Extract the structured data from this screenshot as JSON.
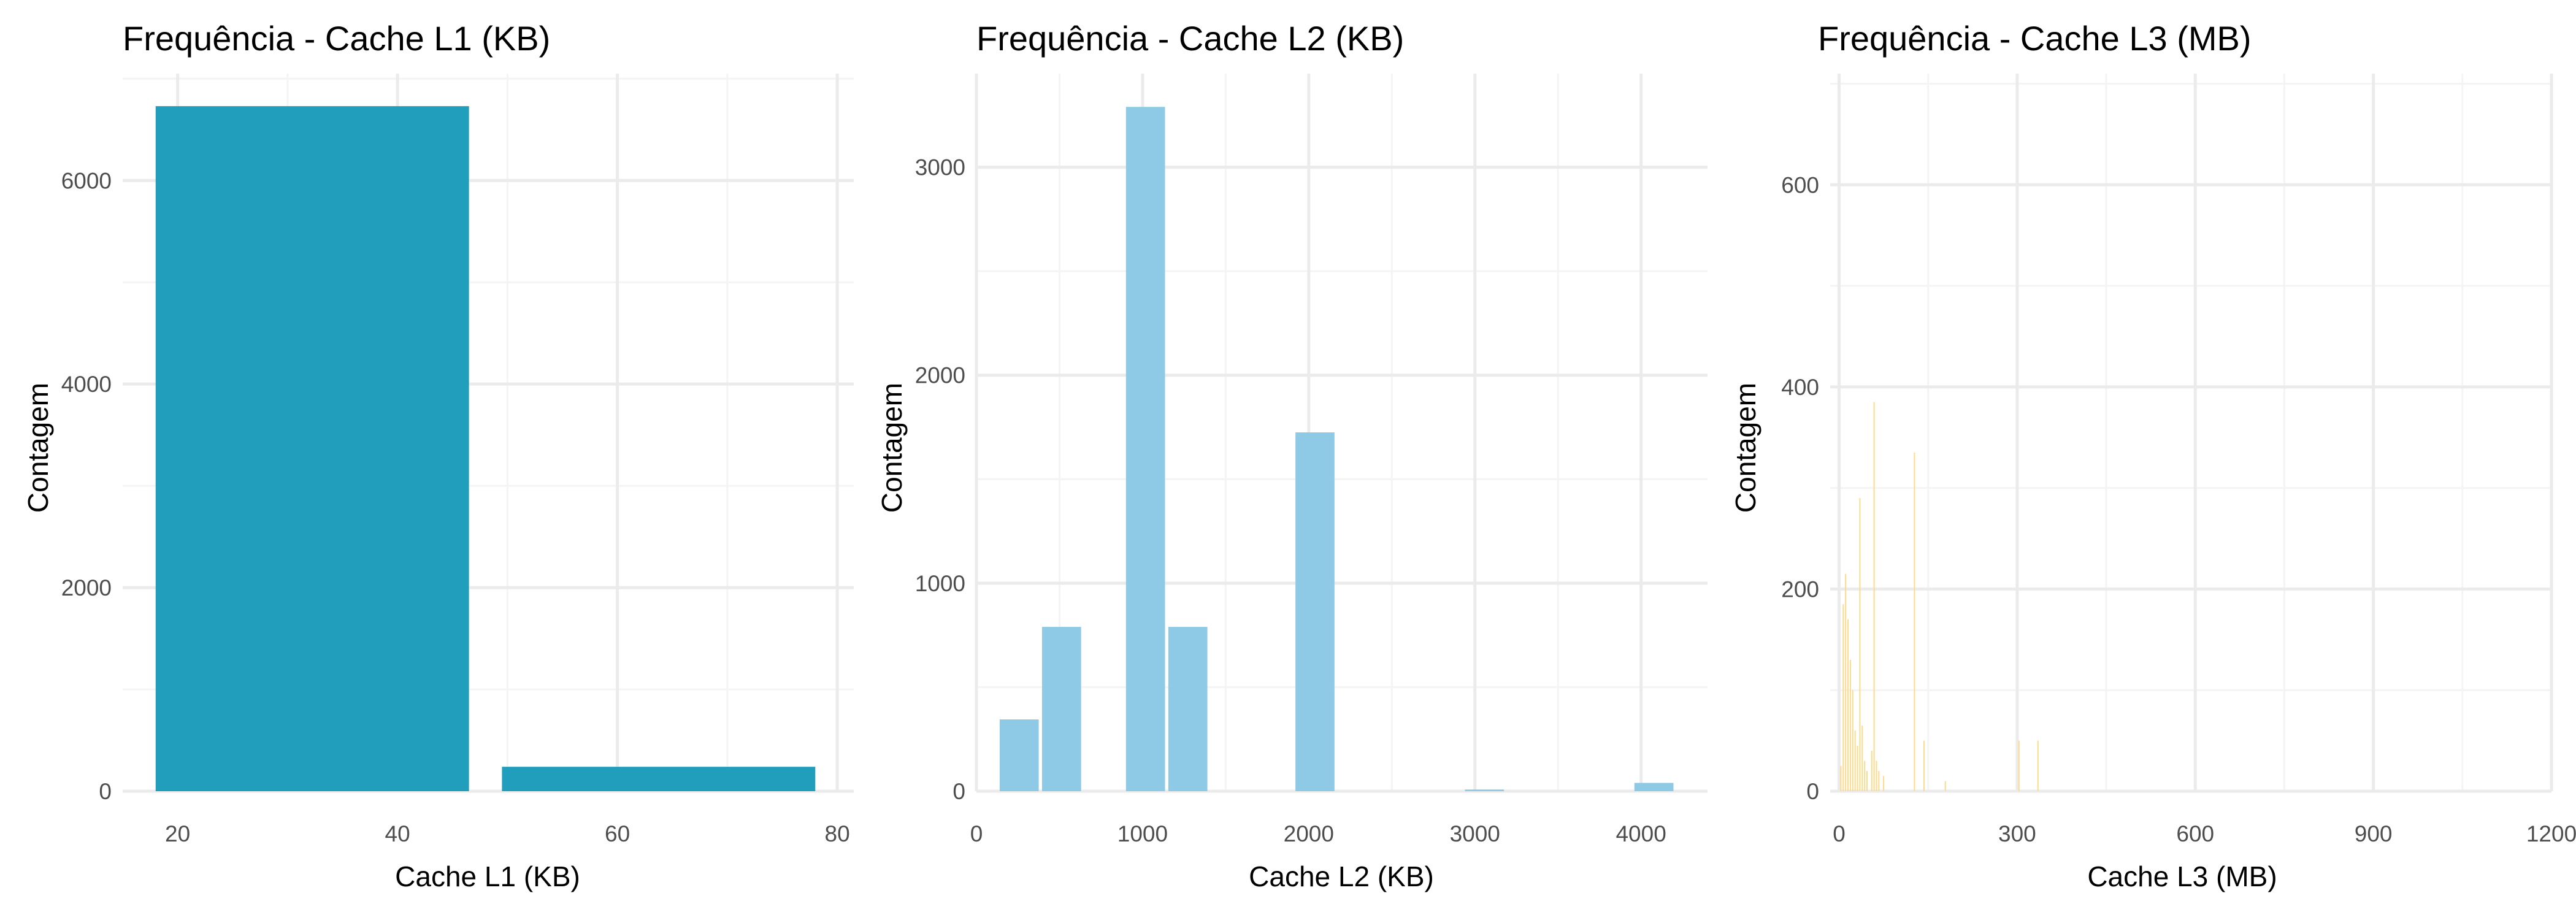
{
  "chart_data": [
    {
      "type": "bar",
      "title": "Frequência - Cache L1 (KB)",
      "xlabel": "Cache L1 (KB)",
      "ylabel": "Contagem",
      "xlim": [
        15,
        81.5
      ],
      "ylim": [
        0,
        7050
      ],
      "x_ticks": [
        20,
        40,
        60,
        80
      ],
      "y_ticks": [
        0,
        2000,
        4000,
        6000
      ],
      "x_tick_labels": [
        "20",
        "40",
        "60",
        "80"
      ],
      "y_tick_labels": [
        "0",
        "2000",
        "4000",
        "6000"
      ],
      "bar_color": "#219ebc",
      "bars": [
        {
          "start": 18,
          "end": 46.5,
          "value": 6730
        },
        {
          "start": 49.5,
          "end": 78,
          "value": 240
        }
      ],
      "grid": true,
      "legend": "none"
    },
    {
      "type": "bar",
      "title": "Frequência - Cache L2 (KB)",
      "xlabel": "Cache L2 (KB)",
      "ylabel": "Contagem",
      "xlim": [
        0,
        4400
      ],
      "ylim": [
        0,
        3450
      ],
      "x_ticks": [
        0,
        1000,
        2000,
        3000,
        4000
      ],
      "y_ticks": [
        0,
        1000,
        2000,
        3000
      ],
      "x_tick_labels": [
        "0",
        "1000",
        "2000",
        "3000",
        "4000"
      ],
      "y_tick_labels": [
        "0",
        "1000",
        "2000",
        "3000"
      ],
      "bar_color": "#8ecae6",
      "bars": [
        {
          "start": 140,
          "end": 375,
          "value": 345
        },
        {
          "start": 395,
          "end": 630,
          "value": 790
        },
        {
          "start": 900,
          "end": 1135,
          "value": 3290
        },
        {
          "start": 1155,
          "end": 1390,
          "value": 790
        },
        {
          "start": 1920,
          "end": 2155,
          "value": 1725
        },
        {
          "start": 2940,
          "end": 3175,
          "value": 8
        },
        {
          "start": 3960,
          "end": 4195,
          "value": 40
        }
      ],
      "grid": true,
      "legend": "none"
    },
    {
      "type": "bar",
      "title": "Frequência - Cache L3 (MB)",
      "xlabel": "Cache L3 (MB)",
      "ylabel": "Contagem",
      "xlim": [
        -15,
        1200
      ],
      "ylim": [
        0,
        710
      ],
      "x_ticks": [
        0,
        300,
        600,
        900,
        1200
      ],
      "y_ticks": [
        0,
        200,
        400,
        600
      ],
      "x_tick_labels": [
        "0",
        "300",
        "600",
        "900",
        "1200"
      ],
      "y_tick_labels": [
        "0",
        "200",
        "400",
        "600"
      ],
      "bar_color": "#ffd98a",
      "bars": [
        {
          "start": 2,
          "end": 4,
          "value": 25
        },
        {
          "start": 6,
          "end": 8,
          "value": 185
        },
        {
          "start": 10,
          "end": 12,
          "value": 215
        },
        {
          "start": 14,
          "end": 16,
          "value": 170
        },
        {
          "start": 18,
          "end": 20,
          "value": 130
        },
        {
          "start": 22,
          "end": 24,
          "value": 100
        },
        {
          "start": 26,
          "end": 28,
          "value": 60
        },
        {
          "start": 30,
          "end": 32,
          "value": 45
        },
        {
          "start": 34,
          "end": 36,
          "value": 290
        },
        {
          "start": 38,
          "end": 40,
          "value": 65
        },
        {
          "start": 42,
          "end": 44,
          "value": 30
        },
        {
          "start": 46,
          "end": 48,
          "value": 20
        },
        {
          "start": 54,
          "end": 56,
          "value": 40
        },
        {
          "start": 58,
          "end": 60,
          "value": 385
        },
        {
          "start": 62,
          "end": 64,
          "value": 30
        },
        {
          "start": 66,
          "end": 68,
          "value": 20
        },
        {
          "start": 74,
          "end": 76,
          "value": 15
        },
        {
          "start": 126,
          "end": 128,
          "value": 335
        },
        {
          "start": 142,
          "end": 144,
          "value": 50
        },
        {
          "start": 178,
          "end": 180,
          "value": 10
        },
        {
          "start": 302,
          "end": 304,
          "value": 50
        },
        {
          "start": 334,
          "end": 336,
          "value": 50
        }
      ],
      "grid": true,
      "legend": "none"
    }
  ]
}
